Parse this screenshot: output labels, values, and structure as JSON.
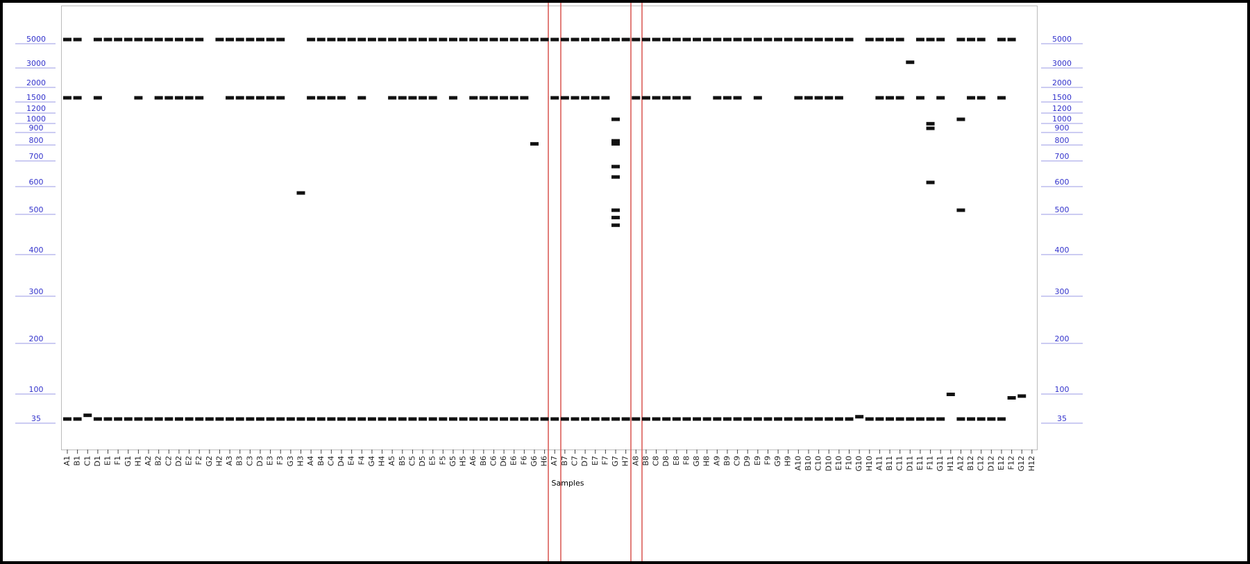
{
  "chart_data": {
    "type": "gel",
    "x_label": "Samples",
    "yticks": [
      5000,
      3000,
      2000,
      1500,
      1200,
      1000,
      900,
      800,
      700,
      600,
      500,
      400,
      300,
      200,
      100,
      35
    ],
    "tick_color": "#3333cc",
    "band_color": "#111111",
    "lanes": [
      {
        "label": "A1",
        "bands": [
          5000,
          1500,
          35
        ]
      },
      {
        "label": "B1",
        "bands": [
          5000,
          1500,
          35
        ]
      },
      {
        "label": "C1",
        "bands": [
          40
        ]
      },
      {
        "label": "D1",
        "bands": [
          5000,
          1500,
          35
        ]
      },
      {
        "label": "E1",
        "bands": [
          5000,
          35
        ]
      },
      {
        "label": "F1",
        "bands": [
          5000,
          35
        ]
      },
      {
        "label": "G1",
        "bands": [
          5000,
          35
        ]
      },
      {
        "label": "H1",
        "bands": [
          5000,
          1500,
          35
        ]
      },
      {
        "label": "A2",
        "bands": [
          5000,
          35
        ]
      },
      {
        "label": "B2",
        "bands": [
          5000,
          1500,
          35
        ]
      },
      {
        "label": "C2",
        "bands": [
          5000,
          1500,
          35
        ]
      },
      {
        "label": "D2",
        "bands": [
          5000,
          1500,
          35
        ]
      },
      {
        "label": "E2",
        "bands": [
          5000,
          1500,
          35
        ]
      },
      {
        "label": "F2",
        "bands": [
          5000,
          1500,
          35
        ]
      },
      {
        "label": "G2",
        "bands": [
          35
        ]
      },
      {
        "label": "H2",
        "bands": [
          5000,
          35
        ]
      },
      {
        "label": "A3",
        "bands": [
          5000,
          1500,
          35
        ]
      },
      {
        "label": "B3",
        "bands": [
          5000,
          1500,
          35
        ]
      },
      {
        "label": "C3",
        "bands": [
          5000,
          1500,
          35
        ]
      },
      {
        "label": "D3",
        "bands": [
          5000,
          1500,
          35
        ]
      },
      {
        "label": "E3",
        "bands": [
          5000,
          1500,
          35
        ]
      },
      {
        "label": "F3",
        "bands": [
          5000,
          1500,
          35
        ]
      },
      {
        "label": "G3",
        "bands": [
          35
        ]
      },
      {
        "label": "H3",
        "bands": [
          560,
          35
        ]
      },
      {
        "label": "A4",
        "bands": [
          5000,
          1500,
          35
        ]
      },
      {
        "label": "B4",
        "bands": [
          5000,
          1500,
          35
        ]
      },
      {
        "label": "C4",
        "bands": [
          5000,
          1500,
          35
        ]
      },
      {
        "label": "D4",
        "bands": [
          5000,
          1500,
          35
        ]
      },
      {
        "label": "E4",
        "bands": [
          5000,
          35
        ]
      },
      {
        "label": "F4",
        "bands": [
          5000,
          1500,
          35
        ]
      },
      {
        "label": "G4",
        "bands": [
          5000,
          35
        ]
      },
      {
        "label": "H4",
        "bands": [
          5000,
          35
        ]
      },
      {
        "label": "A5",
        "bands": [
          5000,
          1500,
          35
        ]
      },
      {
        "label": "B5",
        "bands": [
          5000,
          1500,
          35
        ]
      },
      {
        "label": "C5",
        "bands": [
          5000,
          1500,
          35
        ]
      },
      {
        "label": "D5",
        "bands": [
          5000,
          1500,
          35
        ]
      },
      {
        "label": "E5",
        "bands": [
          5000,
          1500,
          35
        ]
      },
      {
        "label": "F5",
        "bands": [
          5000,
          35
        ]
      },
      {
        "label": "G5",
        "bands": [
          5000,
          1500,
          35
        ]
      },
      {
        "label": "H5",
        "bands": [
          5000,
          35
        ]
      },
      {
        "label": "A6",
        "bands": [
          5000,
          1500,
          35
        ]
      },
      {
        "label": "B6",
        "bands": [
          5000,
          1500,
          35
        ]
      },
      {
        "label": "C6",
        "bands": [
          5000,
          1500,
          35
        ]
      },
      {
        "label": "D6",
        "bands": [
          5000,
          1500,
          35
        ]
      },
      {
        "label": "E6",
        "bands": [
          5000,
          1500,
          35
        ]
      },
      {
        "label": "F6",
        "bands": [
          5000,
          1500,
          35
        ]
      },
      {
        "label": "G6",
        "bands": [
          5000,
          780,
          35
        ]
      },
      {
        "label": "H6",
        "bands": [
          5000,
          35
        ]
      },
      {
        "label": "A7",
        "bands": [
          5000,
          1500,
          35
        ]
      },
      {
        "label": "B7",
        "bands": [
          5000,
          1500,
          35
        ]
      },
      {
        "label": "C7",
        "bands": [
          5000,
          1500,
          35
        ]
      },
      {
        "label": "D7",
        "bands": [
          5000,
          1500,
          35
        ]
      },
      {
        "label": "E7",
        "bands": [
          5000,
          1500,
          35
        ]
      },
      {
        "label": "F7",
        "bands": [
          5000,
          1500,
          35
        ]
      },
      {
        "label": "G7",
        "bands": [
          5000,
          1000,
          800,
          780,
          660,
          620,
          500,
          480,
          460,
          35
        ]
      },
      {
        "label": "H7",
        "bands": [
          5000,
          35
        ]
      },
      {
        "label": "A8",
        "bands": [
          5000,
          1500,
          35
        ]
      },
      {
        "label": "B8",
        "bands": [
          5000,
          1500,
          35
        ]
      },
      {
        "label": "C8",
        "bands": [
          5000,
          1500,
          35
        ]
      },
      {
        "label": "D8",
        "bands": [
          5000,
          1500,
          35
        ]
      },
      {
        "label": "E8",
        "bands": [
          5000,
          1500,
          35
        ]
      },
      {
        "label": "F8",
        "bands": [
          5000,
          1500,
          35
        ]
      },
      {
        "label": "G8",
        "bands": [
          5000,
          35
        ]
      },
      {
        "label": "H8",
        "bands": [
          5000,
          35
        ]
      },
      {
        "label": "A9",
        "bands": [
          5000,
          1500,
          35
        ]
      },
      {
        "label": "B9",
        "bands": [
          5000,
          1500,
          35
        ]
      },
      {
        "label": "C9",
        "bands": [
          5000,
          1500,
          35
        ]
      },
      {
        "label": "D9",
        "bands": [
          5000,
          35
        ]
      },
      {
        "label": "E9",
        "bands": [
          5000,
          1500,
          35
        ]
      },
      {
        "label": "F9",
        "bands": [
          5000,
          35
        ]
      },
      {
        "label": "G9",
        "bands": [
          5000,
          35
        ]
      },
      {
        "label": "H9",
        "bands": [
          5000,
          35
        ]
      },
      {
        "label": "A10",
        "bands": [
          5000,
          1500,
          35
        ]
      },
      {
        "label": "B10",
        "bands": [
          5000,
          1500,
          35
        ]
      },
      {
        "label": "C10",
        "bands": [
          5000,
          1500,
          35
        ]
      },
      {
        "label": "D10",
        "bands": [
          5000,
          1500,
          35
        ]
      },
      {
        "label": "E10",
        "bands": [
          5000,
          1500,
          35
        ]
      },
      {
        "label": "F10",
        "bands": [
          5000,
          35
        ]
      },
      {
        "label": "G10",
        "bands": [
          38
        ]
      },
      {
        "label": "H10",
        "bands": [
          5000,
          35
        ]
      },
      {
        "label": "A11",
        "bands": [
          5000,
          1500,
          35
        ]
      },
      {
        "label": "B11",
        "bands": [
          5000,
          1500,
          35
        ]
      },
      {
        "label": "C11",
        "bands": [
          5000,
          1500,
          35
        ]
      },
      {
        "label": "D11",
        "bands": [
          3100,
          35
        ]
      },
      {
        "label": "E11",
        "bands": [
          5000,
          1500,
          35
        ]
      },
      {
        "label": "F11",
        "bands": [
          5000,
          950,
          900,
          600,
          35
        ]
      },
      {
        "label": "G11",
        "bands": [
          5000,
          1500,
          35
        ]
      },
      {
        "label": "H11",
        "bands": [
          85
        ]
      },
      {
        "label": "A12",
        "bands": [
          5000,
          1000,
          500,
          35
        ]
      },
      {
        "label": "B12",
        "bands": [
          5000,
          1500,
          35
        ]
      },
      {
        "label": "C12",
        "bands": [
          5000,
          1500,
          35
        ]
      },
      {
        "label": "D12",
        "bands": [
          35
        ]
      },
      {
        "label": "E12",
        "bands": [
          5000,
          1500,
          35
        ]
      },
      {
        "label": "F12",
        "bands": [
          5000,
          75
        ]
      },
      {
        "label": "G12",
        "bands": [
          80
        ]
      },
      {
        "label": "H12",
        "bands": []
      }
    ]
  }
}
